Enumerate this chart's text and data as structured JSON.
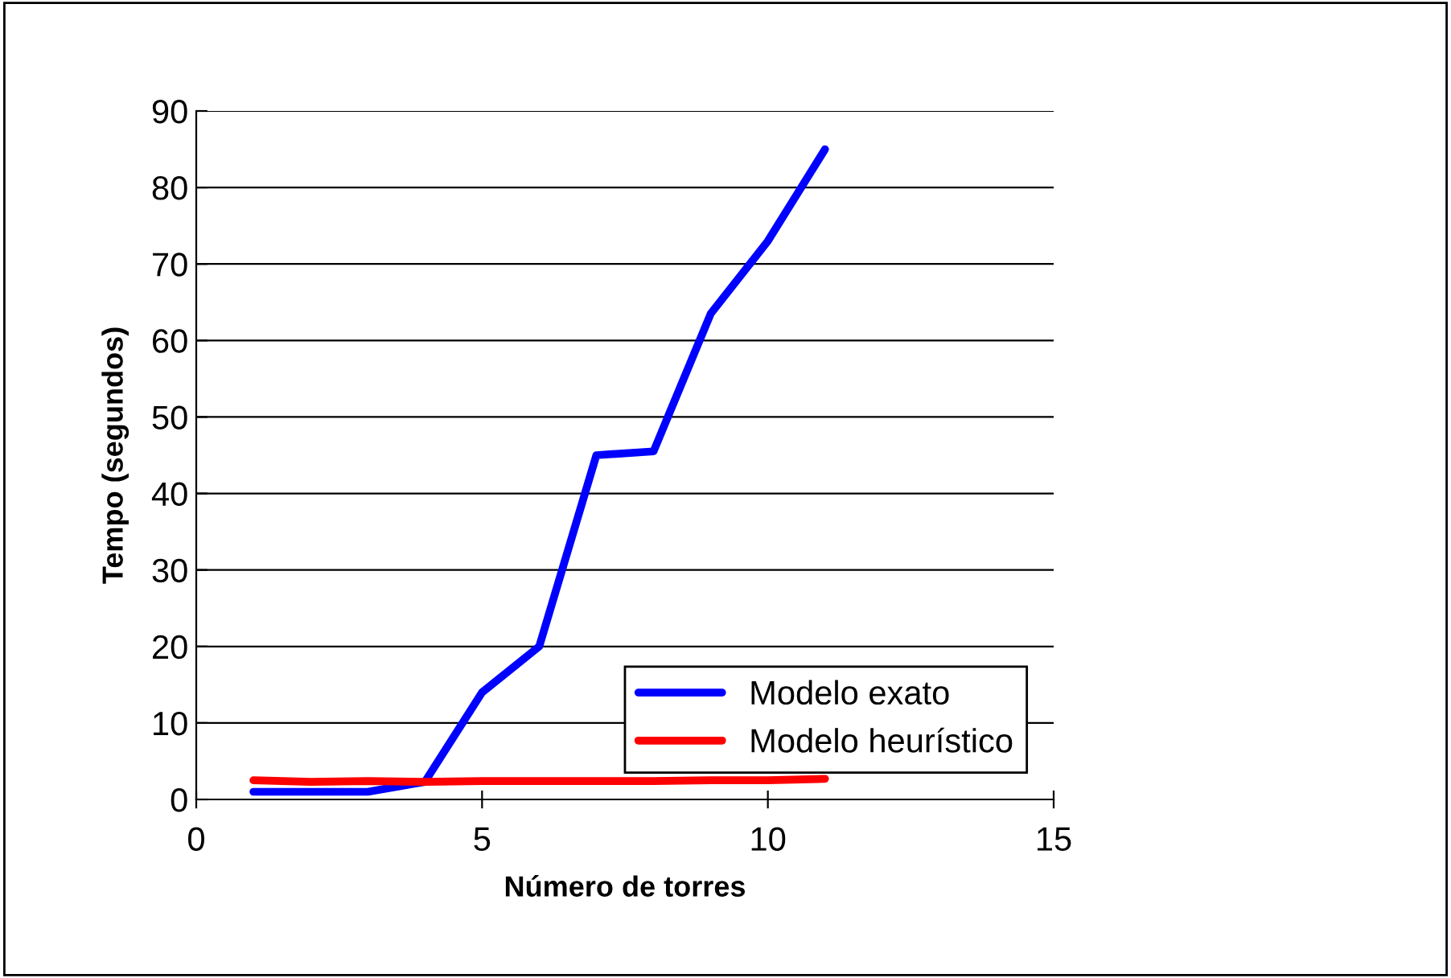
{
  "chart_data": {
    "type": "line",
    "xlabel": "Número de torres",
    "ylabel": "Tempo (segundos)",
    "x": [
      1,
      2,
      3,
      4,
      5,
      6,
      7,
      8,
      9,
      10,
      11
    ],
    "series": [
      {
        "name": "Modelo exato",
        "color": "#0000ff",
        "values": [
          1,
          1,
          1,
          2.3,
          14,
          20,
          45,
          45.5,
          63.5,
          73,
          85
        ]
      },
      {
        "name": "Modelo heurístico",
        "color": "#ff0000",
        "values": [
          2.5,
          2.3,
          2.4,
          2.3,
          2.4,
          2.4,
          2.4,
          2.4,
          2.5,
          2.5,
          2.7
        ]
      }
    ],
    "xlim": [
      0,
      15
    ],
    "xticks": [
      0,
      5,
      10,
      15
    ],
    "ylim": [
      0,
      90
    ],
    "yticks": [
      0,
      10,
      20,
      30,
      40,
      50,
      60,
      70,
      80,
      90
    ],
    "grid": "y",
    "legend": "bottom right",
    "marker": "none",
    "line_style": "solid"
  }
}
